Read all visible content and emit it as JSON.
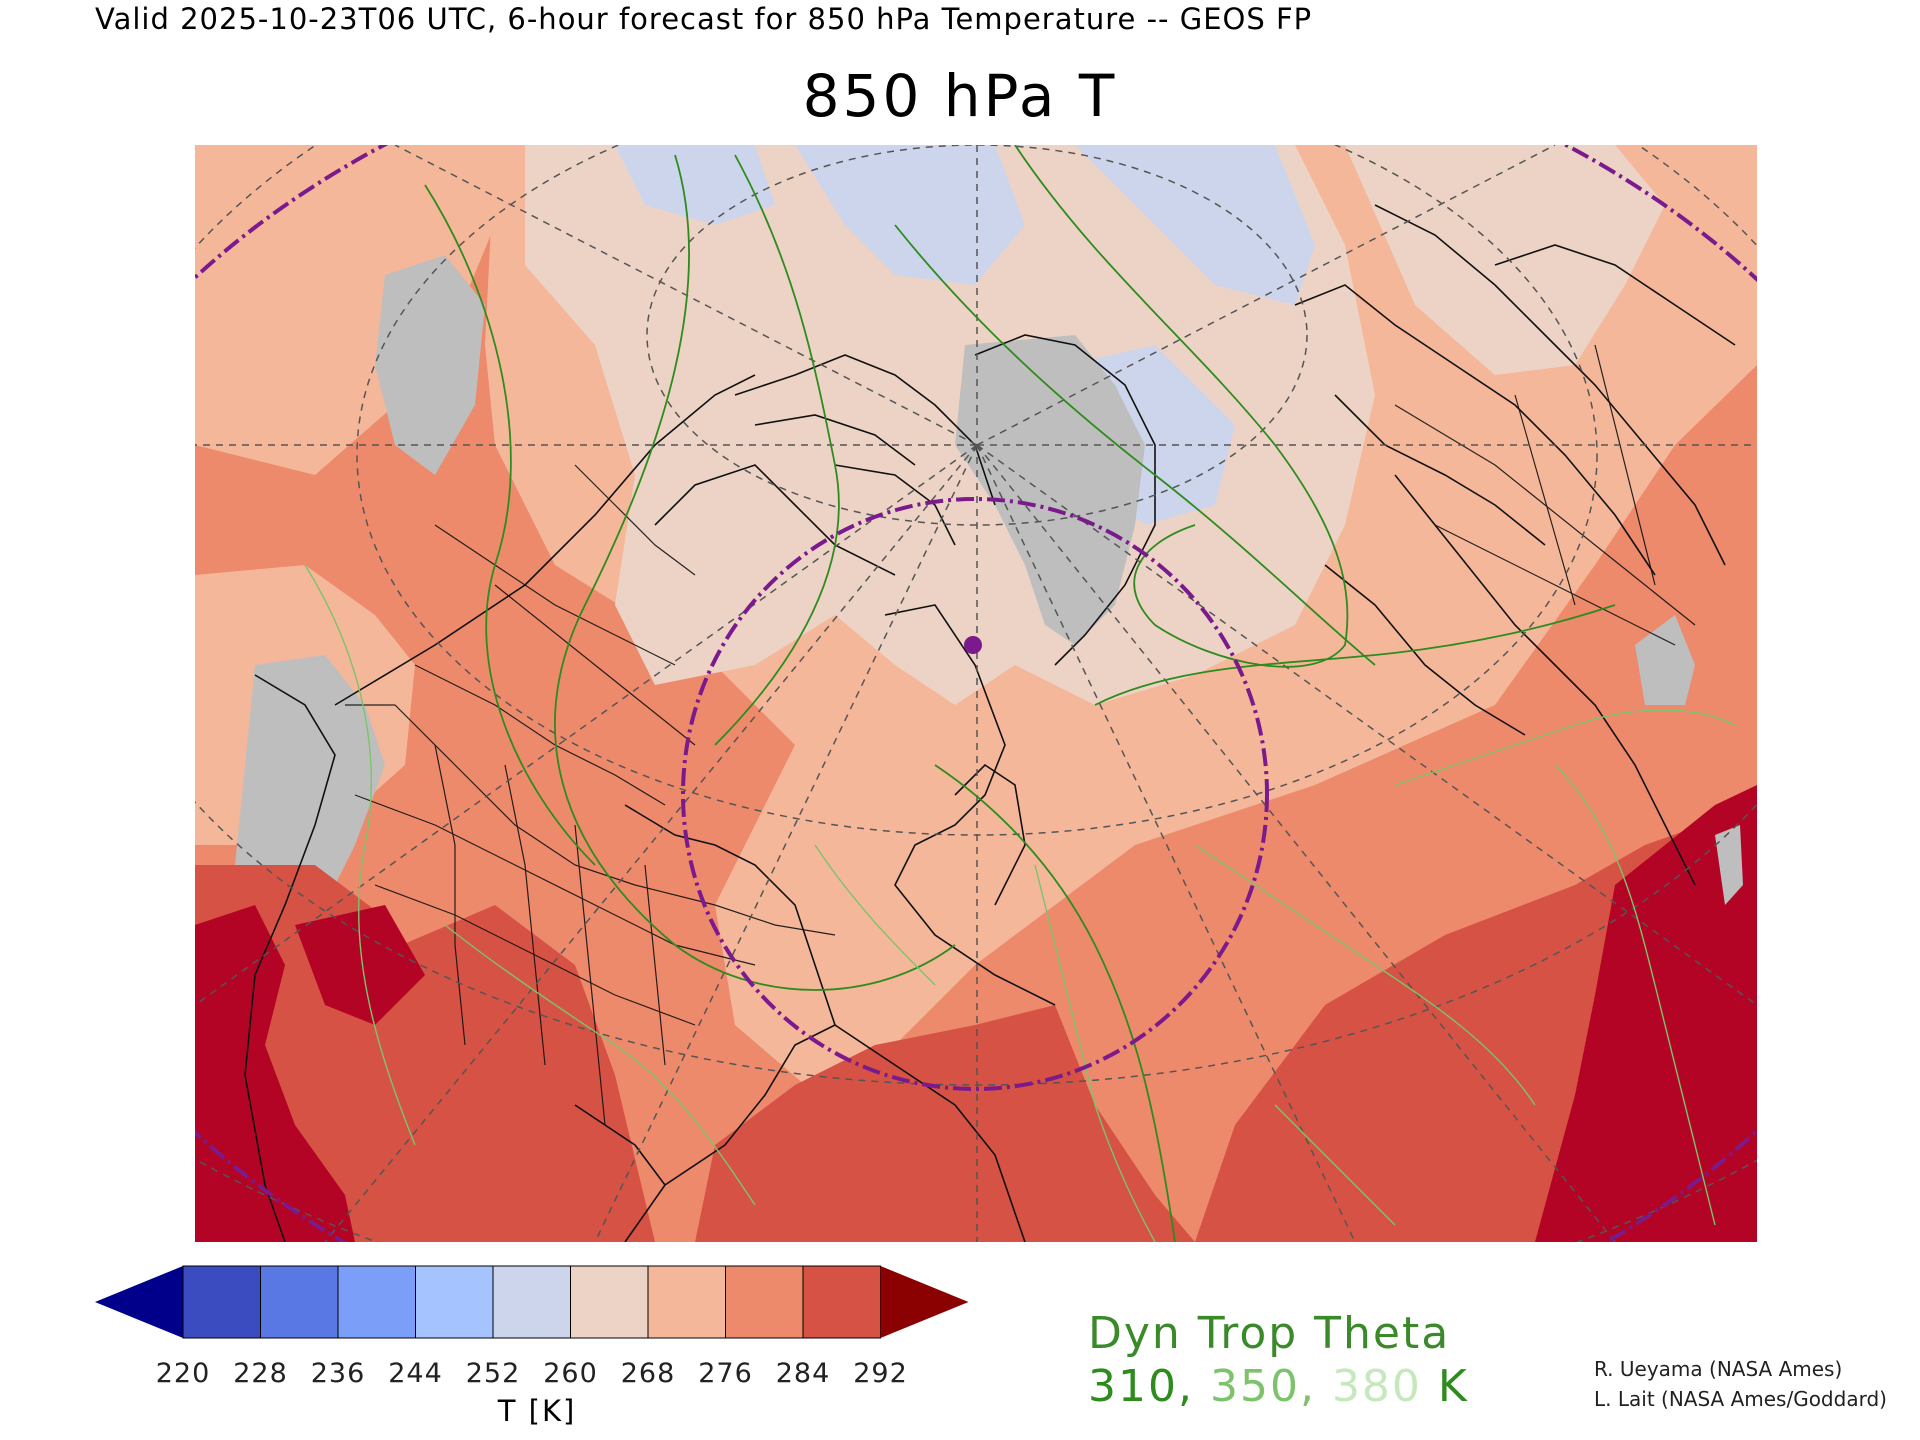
{
  "header": {
    "text": "Valid 2025-10-23T06 UTC, 6-hour forecast for 850 hPa Temperature -- GEOS FP"
  },
  "title": "850 hPa T",
  "colorbar": {
    "unit_label": "T [K]",
    "tick_labels": [
      "220",
      "228",
      "236",
      "244",
      "252",
      "260",
      "268",
      "276",
      "284",
      "292"
    ],
    "under_color": "#00008b",
    "over_color": "#8b0000",
    "colors": [
      "#3b4cc0",
      "#5a78e4",
      "#7b9ff9",
      "#a5c3fe",
      "#ccd5eb",
      "#ecd3c5",
      "#f5b79a",
      "#ee8a6c",
      "#d65244"
    ]
  },
  "legend": {
    "title": "Dyn Trop Theta",
    "values": [
      {
        "text": "310,",
        "color": "#2e8b1e"
      },
      {
        "text": "350,",
        "color": "#7cc36c"
      },
      {
        "text": "380",
        "color": "#c5e8bd"
      },
      {
        "text": "K",
        "color": "#2e8b1e"
      }
    ]
  },
  "credits": [
    "R. Ueyama (NASA Ames)",
    "L. Lait (NASA Ames/Goddard)"
  ],
  "map": {
    "colors": {
      "ice_blue": "#ccd5eb",
      "gray": "#bebebe",
      "t260": "#ecd3c5",
      "t268": "#f5b79a",
      "t276": "#ee8a6c",
      "t284": "#d65244",
      "t292": "#b40426",
      "coast": "#111111",
      "grid": "#555555",
      "ring": "#7a1a8c",
      "contour_dark": "#2e8b1e",
      "contour_mid": "#7cc36c"
    }
  }
}
